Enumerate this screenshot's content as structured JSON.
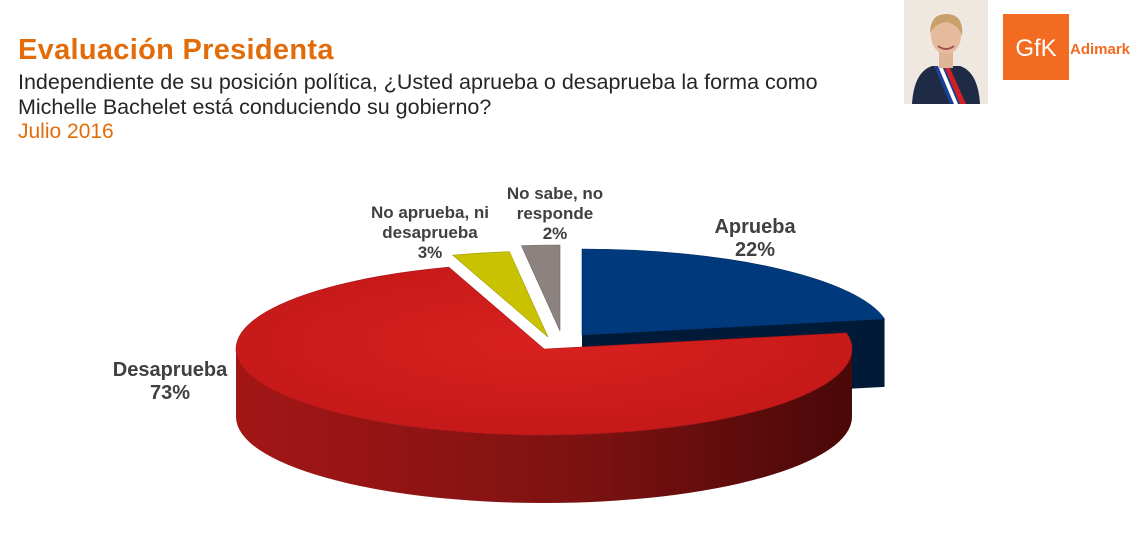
{
  "header": {
    "title": "Evaluación Presidenta",
    "question": "Independiente de su posición política, ¿Usted aprueba o desaprueba la forma como Michelle Bachelet está conduciendo su gobierno?",
    "date": "Julio 2016"
  },
  "branding": {
    "logo_mark": "GfK",
    "logo_text": "Adimark",
    "logo_color": "#f26b21"
  },
  "chart_data": {
    "type": "pie",
    "title": "",
    "slices": [
      {
        "name": "Aprueba",
        "value": 22,
        "label": "22%",
        "color": "#003a7d"
      },
      {
        "name": "Desaprueba",
        "value": 73,
        "label": "73%",
        "color": "#cc1b1b"
      },
      {
        "name": "No aprueba, ni desaprueba",
        "value": 3,
        "label": "3%",
        "color": "#c9c200"
      },
      {
        "name": "No sabe, no responde",
        "value": 2,
        "label": "2%",
        "color": "#8c8381"
      }
    ],
    "label_lines": {
      "aprueba": "Aprueba",
      "desaprueba": "Desaprueba",
      "ni_line1": "No aprueba, ni",
      "ni_line2": "desaprueba",
      "ns_line1": "No sabe, no",
      "ns_line2": "responde"
    }
  }
}
